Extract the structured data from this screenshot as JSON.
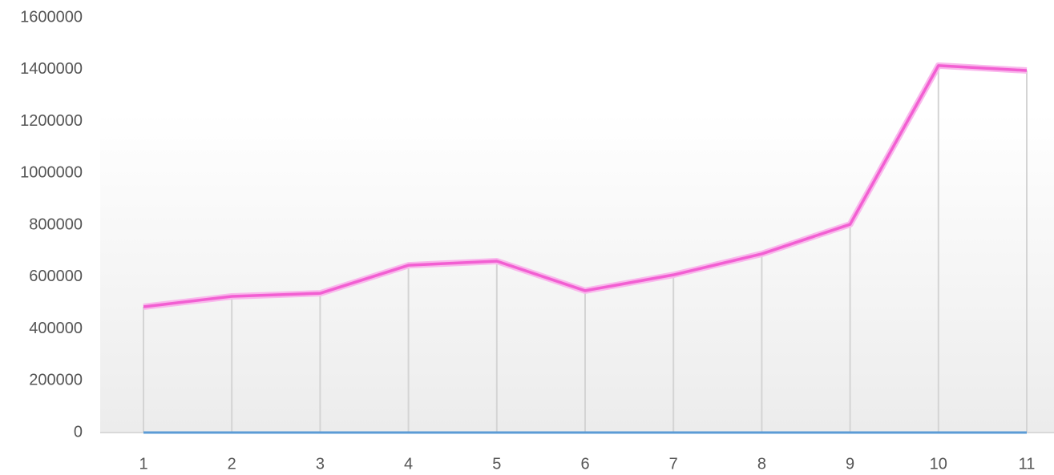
{
  "chart_data": {
    "type": "line",
    "categories": [
      "1",
      "2",
      "3",
      "4",
      "5",
      "6",
      "7",
      "8",
      "9",
      "10",
      "11"
    ],
    "series": [
      {
        "color": "#f25fd2",
        "values": [
          485000,
          525000,
          537000,
          645000,
          661000,
          547000,
          608000,
          689000,
          803000,
          1415000,
          1396000
        ]
      },
      {
        "color": "#5b9bd5",
        "values": [
          0,
          0,
          0,
          0,
          0,
          0,
          0,
          0,
          0,
          0,
          0
        ]
      }
    ],
    "ylim": [
      0,
      1600000
    ],
    "yticks": [
      0,
      200000,
      400000,
      600000,
      800000,
      1000000,
      1200000,
      1400000,
      1600000
    ],
    "drop_lines": true
  }
}
